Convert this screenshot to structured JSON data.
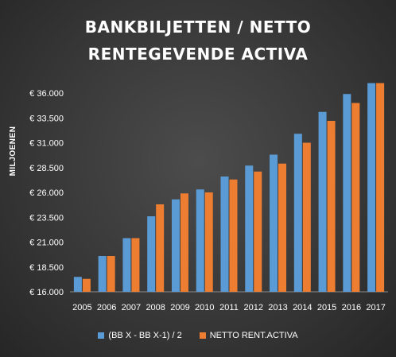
{
  "chart_data": {
    "type": "bar",
    "title": [
      "BANKBILJETTEN   / NETTO",
      "RENTEGEVENDE  ACTIVA"
    ],
    "ylabel": "MILJOENEN",
    "categories": [
      "2005",
      "2006",
      "2007",
      "2008",
      "2009",
      "2010",
      "2011",
      "2012",
      "2013",
      "2014",
      "2015",
      "2016",
      "2017"
    ],
    "yticks": [
      "€ 16.000",
      "€ 18.500",
      "€ 21.000",
      "€ 23.500",
      "€ 26.000",
      "€ 28.500",
      "€ 31.000",
      "€ 33.500",
      "€ 36.000"
    ],
    "ylim": [
      16000,
      36000
    ],
    "series": [
      {
        "name": "(BB X - BB X-1) / 2",
        "color": "#5b9bd5",
        "values": [
          17500,
          19600,
          21400,
          23600,
          25300,
          26300,
          27600,
          28700,
          29800,
          31900,
          34100,
          35900,
          37000
        ]
      },
      {
        "name": "NETTO RENT.ACTIVA",
        "color": "#ed7d31",
        "values": [
          17300,
          19600,
          21400,
          24800,
          25900,
          26000,
          27300,
          28100,
          28900,
          31000,
          33200,
          35000,
          37000
        ]
      }
    ],
    "grid": false,
    "legend_position": "bottom"
  }
}
